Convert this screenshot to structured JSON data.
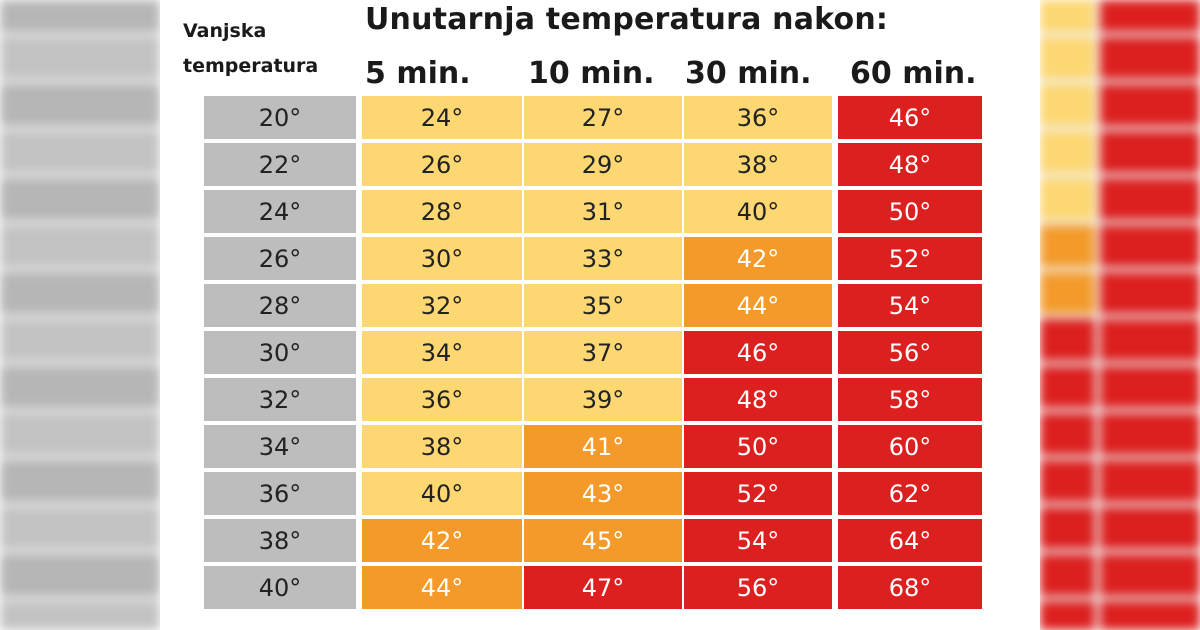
{
  "title": "Unutarnja temperatura nakon:",
  "outside_label_line1": "Vanjska",
  "outside_label_line2": "temperatura",
  "columns": [
    "5 min.",
    "10 min.",
    "30 min.",
    "60 min."
  ],
  "colors": {
    "outside": "#bdbdbd",
    "yellow": "#fcd772",
    "orange": "#f39a2b",
    "red": "#dc1f1f"
  },
  "rows": [
    {
      "outside": "20°",
      "cells": [
        {
          "v": "24°",
          "c": "yellow"
        },
        {
          "v": "27°",
          "c": "yellow"
        },
        {
          "v": "36°",
          "c": "yellow"
        },
        {
          "v": "46°",
          "c": "red"
        }
      ]
    },
    {
      "outside": "22°",
      "cells": [
        {
          "v": "26°",
          "c": "yellow"
        },
        {
          "v": "29°",
          "c": "yellow"
        },
        {
          "v": "38°",
          "c": "yellow"
        },
        {
          "v": "48°",
          "c": "red"
        }
      ]
    },
    {
      "outside": "24°",
      "cells": [
        {
          "v": "28°",
          "c": "yellow"
        },
        {
          "v": "31°",
          "c": "yellow"
        },
        {
          "v": "40°",
          "c": "yellow"
        },
        {
          "v": "50°",
          "c": "red"
        }
      ]
    },
    {
      "outside": "26°",
      "cells": [
        {
          "v": "30°",
          "c": "yellow"
        },
        {
          "v": "33°",
          "c": "yellow"
        },
        {
          "v": "42°",
          "c": "orange"
        },
        {
          "v": "52°",
          "c": "red"
        }
      ]
    },
    {
      "outside": "28°",
      "cells": [
        {
          "v": "32°",
          "c": "yellow"
        },
        {
          "v": "35°",
          "c": "yellow"
        },
        {
          "v": "44°",
          "c": "orange"
        },
        {
          "v": "54°",
          "c": "red"
        }
      ]
    },
    {
      "outside": "30°",
      "cells": [
        {
          "v": "34°",
          "c": "yellow"
        },
        {
          "v": "37°",
          "c": "yellow"
        },
        {
          "v": "46°",
          "c": "red"
        },
        {
          "v": "56°",
          "c": "red"
        }
      ]
    },
    {
      "outside": "32°",
      "cells": [
        {
          "v": "36°",
          "c": "yellow"
        },
        {
          "v": "39°",
          "c": "yellow"
        },
        {
          "v": "48°",
          "c": "red"
        },
        {
          "v": "58°",
          "c": "red"
        }
      ]
    },
    {
      "outside": "34°",
      "cells": [
        {
          "v": "38°",
          "c": "yellow"
        },
        {
          "v": "41°",
          "c": "orange"
        },
        {
          "v": "50°",
          "c": "red"
        },
        {
          "v": "60°",
          "c": "red"
        }
      ]
    },
    {
      "outside": "36°",
      "cells": [
        {
          "v": "40°",
          "c": "yellow"
        },
        {
          "v": "43°",
          "c": "orange"
        },
        {
          "v": "52°",
          "c": "red"
        },
        {
          "v": "62°",
          "c": "red"
        }
      ]
    },
    {
      "outside": "38°",
      "cells": [
        {
          "v": "42°",
          "c": "orange"
        },
        {
          "v": "45°",
          "c": "orange"
        },
        {
          "v": "54°",
          "c": "red"
        },
        {
          "v": "64°",
          "c": "red"
        }
      ]
    },
    {
      "outside": "40°",
      "cells": [
        {
          "v": "44°",
          "c": "orange"
        },
        {
          "v": "47°",
          "c": "red"
        },
        {
          "v": "56°",
          "c": "red"
        },
        {
          "v": "68°",
          "c": "red"
        }
      ]
    }
  ]
}
